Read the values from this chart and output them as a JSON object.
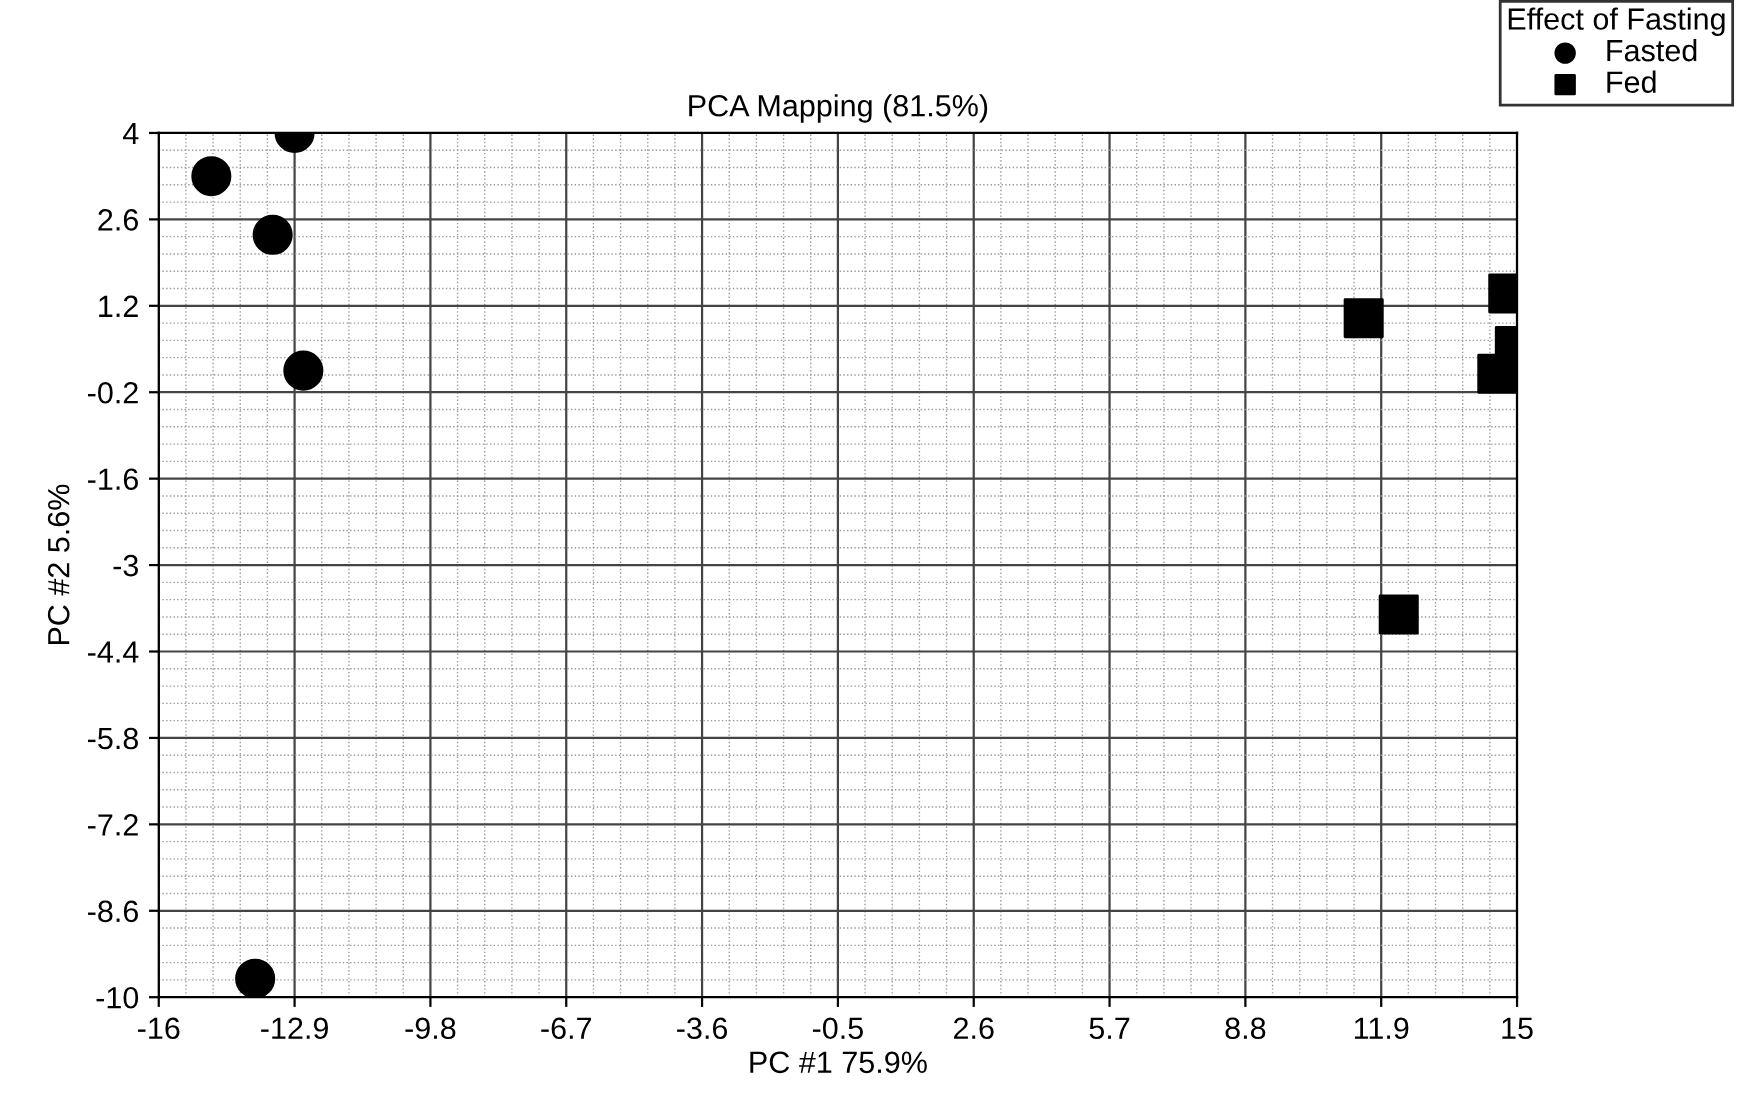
{
  "chart_data": {
    "type": "scatter",
    "title": "PCA Mapping (81.5%)",
    "xlabel": "PC #1 75.9%",
    "ylabel": "PC #2 5.6%",
    "legend_title": "Effect of Fasting",
    "series": [
      {
        "name": "Fasted",
        "color": "#000000",
        "marker": "circle",
        "x": [
          -14.8,
          -12.9,
          -13.4,
          -12.7,
          -13.8
        ],
        "values": [
          3.3,
          4.0,
          2.35,
          0.15,
          -9.7
        ]
      },
      {
        "name": "Fed",
        "color": "#000000",
        "marker": "square",
        "x": [
          11.5,
          14.8,
          14.95,
          14.55,
          12.3
        ],
        "values": [
          1.0,
          1.4,
          0.55,
          0.1,
          -3.8
        ]
      }
    ],
    "xlim": [
      -16,
      15
    ],
    "xticks": [
      -16,
      -12.9,
      -9.8,
      -6.7,
      -3.6,
      -0.5,
      2.6,
      5.7,
      8.8,
      11.9,
      15
    ],
    "ylim": [
      -10,
      4
    ],
    "yticks": [
      -10,
      -8.6,
      -7.2,
      -5.8,
      -4.4,
      -3,
      -1.6,
      -0.2,
      1.2,
      2.6,
      4
    ],
    "grid": true,
    "legend": "top right"
  }
}
